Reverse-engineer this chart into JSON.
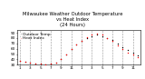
{
  "title": "Milwaukee Weather Outdoor Temperature\nvs Heat Index\n(24 Hours)",
  "title_fontsize": 3.8,
  "background_color": "#ffffff",
  "plot_bg_color": "#ffffff",
  "grid_color": "#888888",
  "ylim": [
    30,
    95
  ],
  "y_ticks": [
    30,
    40,
    50,
    60,
    70,
    80,
    90
  ],
  "y_tick_labels": [
    "30",
    "40",
    "50",
    "60",
    "70",
    "80",
    "90"
  ],
  "temp_color": "#000000",
  "heat_color": "#ff0000",
  "heat_color_orange": "#ff8800",
  "legend_temp": "Outdoor Temp",
  "legend_heat": "Heat Index",
  "temp_data": [
    38,
    36,
    34,
    33,
    32,
    31,
    32,
    34,
    40,
    50,
    60,
    68,
    74,
    80,
    84,
    86,
    84,
    80,
    76,
    70,
    63,
    57,
    52,
    47
  ],
  "heat_data": [
    38,
    36,
    34,
    33,
    32,
    31,
    32,
    34,
    40,
    50,
    60,
    68,
    74,
    82,
    87,
    89,
    86,
    80,
    74,
    66,
    59,
    53,
    49,
    44
  ],
  "x_grid_positions": [
    0,
    2,
    4,
    6,
    8,
    10,
    12,
    14,
    16,
    18,
    20,
    22
  ],
  "x_tick_positions": [
    0,
    2,
    4,
    6,
    8,
    10,
    12,
    14,
    16,
    18,
    20,
    22
  ],
  "x_tick_labels": [
    "1",
    "3",
    "5",
    "7",
    "9",
    "11",
    "1",
    "3",
    "5",
    "7",
    "9",
    "11"
  ],
  "legend_fontsize": 3.2,
  "tick_fontsize": 3.0,
  "marker_size": 1.0
}
